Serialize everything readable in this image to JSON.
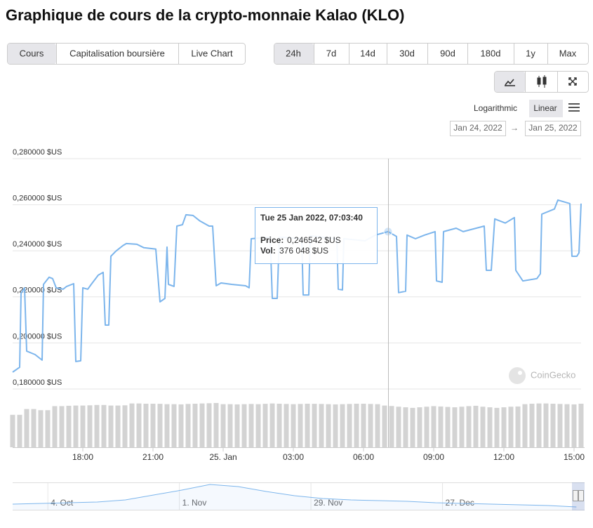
{
  "header": {
    "title": "Graphique de cours de la crypto-monnaie Kalao (KLO)"
  },
  "tabs": [
    "Cours",
    "Capitalisation boursière",
    "Live Chart"
  ],
  "ranges": [
    "24h",
    "7d",
    "14d",
    "30d",
    "90d",
    "180d",
    "1y",
    "Max"
  ],
  "scale_options": [
    "Logarithmic",
    "Linear"
  ],
  "date_range": {
    "from": "Jan 24, 2022",
    "arrow": "→",
    "to": "Jan 25, 2022"
  },
  "watermark": "CoinGecko",
  "tooltip": {
    "title": "Tue 25 Jan 2022, 07:03:40",
    "price_label": "Price:",
    "price": "0,246542 $US",
    "vol_label": "Vol:",
    "vol": "376 048 $US"
  },
  "chart_data": {
    "type": "line",
    "color": "#7cb5ec",
    "grid": true,
    "x": [
      0,
      0.3,
      0.36,
      0.51,
      0.6,
      0.96,
      1.26,
      1.32,
      1.56,
      1.71,
      1.86,
      2.16,
      2.31,
      2.61,
      2.7,
      2.91,
      3,
      3.21,
      3.36,
      3.66,
      3.87,
      3.96,
      4.11,
      4.2,
      4.41,
      4.71,
      4.86,
      5.31,
      5.61,
      6.12,
      6.3,
      6.51,
      6.6,
      6.66,
      6.9,
      7.02,
      7.26,
      7.41,
      7.71,
      8.01,
      8.4,
      8.55,
      8.7,
      8.91,
      9.36,
      9.96,
      10.11,
      10.2,
      11.01,
      11.1,
      11.31,
      11.4,
      12.36,
      12.42,
      12.66,
      12.72,
      13.86,
      13.92,
      14.1,
      14.16,
      15.06,
      15.51,
      16.05,
      16.41,
      16.5,
      16.8,
      16.86,
      17.22,
      17.61,
      18.06,
      18.12,
      18.36,
      18.42,
      18.96,
      19.26,
      20.16,
      20.25,
      20.46,
      20.61,
      21.06,
      21.45,
      21.51,
      21.81,
      22.41,
      22.56,
      22.62,
      23.16,
      23.31,
      23.82,
      23.91,
      24.12,
      24.21,
      24.3
    ],
    "values": [
      0.1855,
      0.1876,
      0.2197,
      0.2221,
      0.1946,
      0.1931,
      0.1907,
      0.2236,
      0.2267,
      0.2261,
      0.2221,
      0.2215,
      0.2227,
      0.2239,
      0.1901,
      0.1904,
      0.2221,
      0.2215,
      0.2236,
      0.2276,
      0.2288,
      0.2059,
      0.2059,
      0.2358,
      0.238,
      0.2404,
      0.2413,
      0.241,
      0.2395,
      0.2389,
      0.216,
      0.2175,
      0.2398,
      0.2236,
      0.2227,
      0.2489,
      0.2495,
      0.2538,
      0.2535,
      0.2511,
      0.2489,
      0.2489,
      0.223,
      0.2242,
      0.2236,
      0.223,
      0.2221,
      0.2434,
      0.2441,
      0.2175,
      0.2175,
      0.2441,
      0.2434,
      0.219,
      0.219,
      0.2447,
      0.2434,
      0.2215,
      0.2212,
      0.2434,
      0.2425,
      0.245,
      0.2465,
      0.2444,
      0.22,
      0.2206,
      0.245,
      0.2434,
      0.245,
      0.2465,
      0.2251,
      0.2245,
      0.2465,
      0.248,
      0.2465,
      0.2489,
      0.2297,
      0.2297,
      0.252,
      0.2502,
      0.2526,
      0.2297,
      0.2251,
      0.2261,
      0.2282,
      0.2541,
      0.2563,
      0.2602,
      0.2587,
      0.2358,
      0.2358,
      0.2373,
      0.2587
    ],
    "xlim": [
      0,
      24.3
    ],
    "ylim": [
      0.18,
      0.28
    ],
    "yticks": [
      {
        "value": 0.28,
        "label": "0,280000 $US"
      },
      {
        "value": 0.26,
        "label": "0,260000 $US"
      },
      {
        "value": 0.24,
        "label": "0,240000 $US"
      },
      {
        "value": 0.22,
        "label": "0,220000 $US"
      },
      {
        "value": 0.2,
        "label": "0,200000 $US"
      },
      {
        "value": 0.18,
        "label": "0,180000 $US"
      }
    ],
    "xticks": [
      {
        "value": 3,
        "label": "18:00"
      },
      {
        "value": 6,
        "label": "21:00"
      },
      {
        "value": 9,
        "label": "25. Jan"
      },
      {
        "value": 12,
        "label": "03:00"
      },
      {
        "value": 15,
        "label": "06:00"
      },
      {
        "value": 18,
        "label": "09:00"
      },
      {
        "value": 21,
        "label": "12:00"
      },
      {
        "value": 24,
        "label": "15:00"
      }
    ],
    "volume": {
      "type": "bar",
      "color": "#d3d3d3",
      "y2lim": [
        0,
        400000
      ],
      "x": [
        0,
        0.3,
        0.6,
        0.9,
        1.2,
        1.5,
        1.8,
        2.1,
        2.4,
        2.7,
        3,
        3.3,
        3.6,
        3.9,
        4.2,
        4.5,
        4.8,
        5.1,
        5.4,
        5.7,
        6,
        6.3,
        6.6,
        6.9,
        7.2,
        7.5,
        7.8,
        8.1,
        8.4,
        8.7,
        9,
        9.3,
        9.6,
        9.9,
        10.2,
        10.5,
        10.8,
        11.1,
        11.4,
        11.7,
        12,
        12.3,
        12.6,
        12.9,
        13.2,
        13.5,
        13.8,
        14.1,
        14.4,
        14.7,
        15,
        15.3,
        15.6,
        15.9,
        16.2,
        16.5,
        16.8,
        17.1,
        17.4,
        17.7,
        18,
        18.3,
        18.6,
        18.9,
        19.2,
        19.5,
        19.8,
        20.1,
        20.4,
        20.7,
        21,
        21.3,
        21.6,
        21.9,
        22.2,
        22.5,
        22.8,
        23.1,
        23.4,
        23.7,
        24,
        24.3
      ],
      "values": [
        280000,
        280000,
        330000,
        330000,
        320000,
        320000,
        355000,
        355000,
        358000,
        360000,
        360000,
        362000,
        365000,
        365000,
        360000,
        360000,
        362000,
        378000,
        378000,
        376000,
        376000,
        375000,
        372000,
        372000,
        370000,
        374000,
        376000,
        378000,
        380000,
        382000,
        372000,
        372000,
        370000,
        372000,
        374000,
        372000,
        375000,
        378000,
        376000,
        374000,
        372000,
        374000,
        376000,
        375000,
        374000,
        372000,
        370000,
        372000,
        374000,
        376000,
        376000,
        374000,
        372000,
        360000,
        356000,
        350000,
        345000,
        340000,
        345000,
        350000,
        355000,
        352000,
        348000,
        345000,
        350000,
        355000,
        358000,
        350000,
        345000,
        340000,
        345000,
        350000,
        352000,
        372000,
        376000,
        378000,
        378000,
        376000,
        374000,
        372000,
        370000,
        376000
      ]
    },
    "navigator": {
      "type": "line",
      "color": "#7cb5ec",
      "x": [
        0,
        6,
        12,
        18,
        24,
        30,
        36,
        42,
        48,
        54,
        60,
        66,
        72,
        78,
        84,
        90,
        96,
        102,
        108,
        114,
        120
      ],
      "values": [
        0.326,
        0.342,
        0.358,
        0.374,
        0.421,
        0.532,
        0.642,
        0.768,
        0.721,
        0.611,
        0.516,
        0.453,
        0.421,
        0.405,
        0.389,
        0.358,
        0.342,
        0.326,
        0.311,
        0.295,
        0.263
      ],
      "xlim": [
        0,
        121
      ],
      "ylim": [
        0.2,
        0.8
      ],
      "xticks": [
        {
          "value": 7.5,
          "label": "4. Oct"
        },
        {
          "value": 35.5,
          "label": "1. Nov"
        },
        {
          "value": 63.5,
          "label": "29. Nov"
        },
        {
          "value": 91.5,
          "label": "27. Dec"
        }
      ]
    }
  }
}
